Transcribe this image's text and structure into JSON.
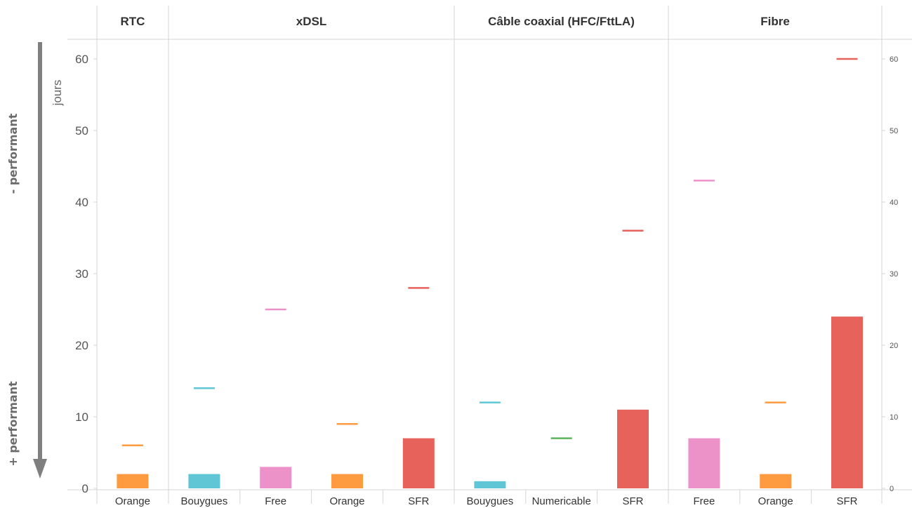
{
  "chart_data": {
    "type": "bar",
    "ylabel": "jours",
    "ylim": [
      0,
      62
    ],
    "yticks": [
      0,
      10,
      20,
      30,
      40,
      50,
      60
    ],
    "grid": false,
    "legend": "none",
    "side_labels": {
      "top": "- performant",
      "bottom": "+ performant"
    },
    "series": [
      {
        "mark": "bar",
        "values": [
          2,
          2,
          3,
          2,
          7,
          1,
          0,
          11,
          7,
          2,
          24
        ]
      },
      {
        "mark": "dash",
        "values": [
          6,
          14,
          25,
          9,
          28,
          12,
          7,
          36,
          43,
          12,
          60
        ]
      }
    ],
    "panels": [
      {
        "title": "RTC",
        "categories": [
          {
            "label": "Orange",
            "bar": 2,
            "dash": 6,
            "color": "#fe9a3f"
          }
        ]
      },
      {
        "title": "xDSL",
        "categories": [
          {
            "label": "Bouygues",
            "bar": 2,
            "dash": 14,
            "color": "#60c6d5"
          },
          {
            "label": "Free",
            "bar": 3,
            "dash": 25,
            "color": "#ed92c9"
          },
          {
            "label": "Orange",
            "bar": 2,
            "dash": 9,
            "color": "#fe9a3f"
          },
          {
            "label": "SFR",
            "bar": 7,
            "dash": 28,
            "color": "#e8625c"
          }
        ]
      },
      {
        "title": "Câble coaxial (HFC/FttLA)",
        "categories": [
          {
            "label": "Bouygues",
            "bar": 1,
            "dash": 12,
            "color": "#60c6d5"
          },
          {
            "label": "Numericable",
            "bar": 0,
            "dash": 7,
            "color": "#5ab45a"
          },
          {
            "label": "SFR",
            "bar": 11,
            "dash": 36,
            "color": "#e8625c"
          }
        ]
      },
      {
        "title": "Fibre",
        "categories": [
          {
            "label": "Free",
            "bar": 7,
            "dash": 43,
            "color": "#ed92c9"
          },
          {
            "label": "Orange",
            "bar": 2,
            "dash": 12,
            "color": "#fe9a3f"
          },
          {
            "label": "SFR",
            "bar": 24,
            "dash": 60,
            "color": "#e8625c"
          }
        ]
      }
    ]
  },
  "colors": {
    "axis": "#d6d6d6",
    "arrow": "#7f7f7f"
  }
}
